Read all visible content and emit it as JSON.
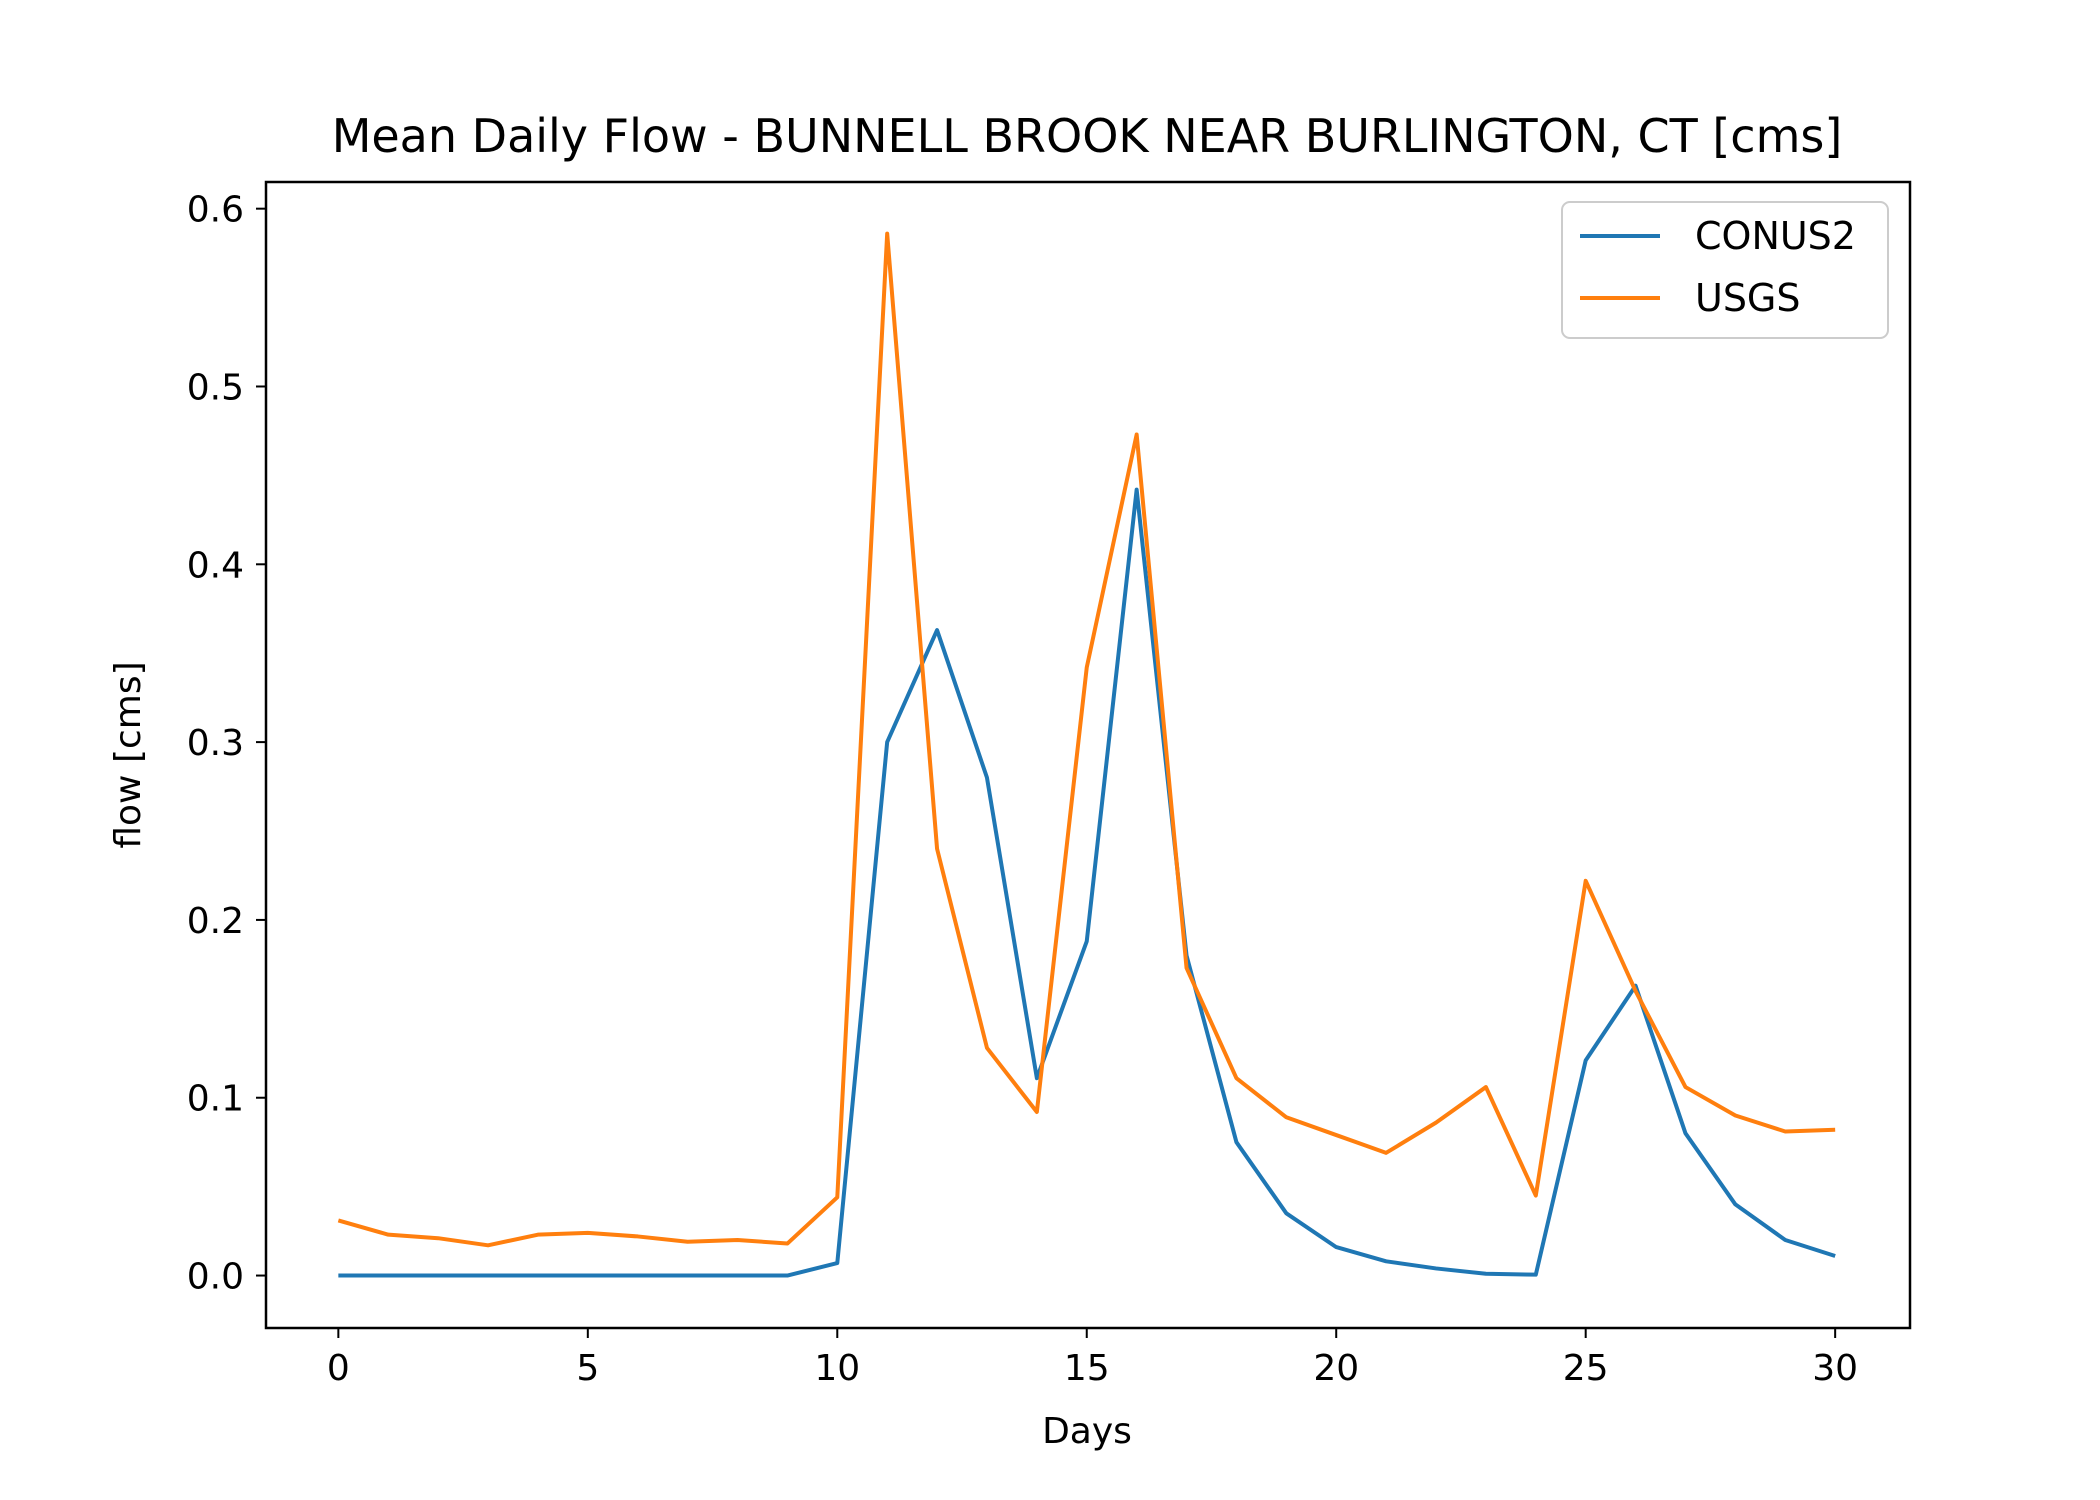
{
  "chart_data": {
    "type": "line",
    "title": "Mean Daily Flow - BUNNELL BROOK NEAR BURLINGTON, CT [cms]",
    "xlabel": "Days",
    "ylabel": "flow [cms]",
    "xlim": [
      -1.45,
      31.5
    ],
    "ylim": [
      -0.0295,
      0.615
    ],
    "xticks": [
      0,
      5,
      10,
      15,
      20,
      25,
      30
    ],
    "yticks": [
      0.0,
      0.1,
      0.2,
      0.3,
      0.4,
      0.5,
      0.6
    ],
    "grid": false,
    "legend_position": "top-right",
    "x": [
      0,
      1,
      2,
      3,
      4,
      5,
      6,
      7,
      8,
      9,
      10,
      11,
      12,
      13,
      14,
      15,
      16,
      17,
      18,
      19,
      20,
      21,
      22,
      23,
      24,
      25,
      26,
      27,
      28,
      29,
      30
    ],
    "series": [
      {
        "name": "CONUS2",
        "color": "#1f77b4",
        "values": [
          0.0,
          0.0,
          0.0,
          0.0,
          0.0,
          0.0,
          0.0,
          0.0,
          0.0,
          0.0,
          0.007,
          0.3,
          0.363,
          0.28,
          0.111,
          0.188,
          0.442,
          0.18,
          0.075,
          0.035,
          0.016,
          0.008,
          0.004,
          0.001,
          0.0005,
          0.121,
          0.163,
          0.08,
          0.04,
          0.02,
          0.011
        ]
      },
      {
        "name": "USGS",
        "color": "#ff7f0e",
        "values": [
          0.031,
          0.023,
          0.021,
          0.017,
          0.023,
          0.024,
          0.022,
          0.019,
          0.02,
          0.018,
          0.044,
          0.586,
          0.24,
          0.128,
          0.092,
          0.342,
          0.473,
          0.173,
          0.111,
          0.089,
          0.079,
          0.069,
          0.086,
          0.106,
          0.045,
          0.222,
          0.16,
          0.106,
          0.09,
          0.081,
          0.082
        ]
      }
    ]
  }
}
